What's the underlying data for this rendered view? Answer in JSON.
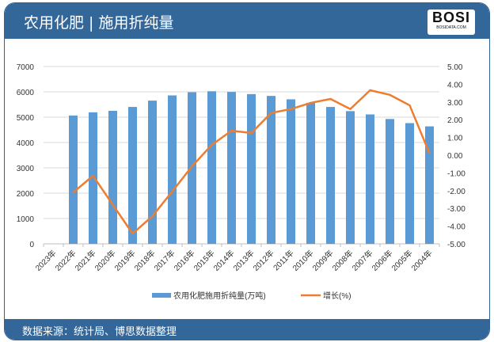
{
  "header": {
    "title": "农用化肥 | 施用折纯量",
    "logo_text": "BOSI",
    "logo_sub": "BOSIDATA.COM"
  },
  "footer": {
    "source": "数据来源：统计局、博思数据整理"
  },
  "colors": {
    "bar": "#5b9bd5",
    "line": "#ed7d31",
    "header": "#336699"
  },
  "chart_data": {
    "type": "bar+line",
    "categories": [
      "2023年",
      "2022年",
      "2021年",
      "2020年",
      "2019年",
      "2018年",
      "2017年",
      "2016年",
      "2015年",
      "2014年",
      "2013年",
      "2012年",
      "2011年",
      "2010年",
      "2009年",
      "2008年",
      "2007年",
      "2006年",
      "2005年",
      "2004年"
    ],
    "series": [
      {
        "name": "农用化肥施用折纯量(万吨)",
        "type": "bar",
        "axis": "left",
        "values": [
          null,
          5065,
          5191,
          5251,
          5404,
          5653,
          5859,
          5984,
          6023,
          5996,
          5912,
          5839,
          5704,
          5562,
          5404,
          5239,
          5108,
          4928,
          4766,
          4637
        ]
      },
      {
        "name": "增长(%)",
        "type": "line",
        "axis": "right",
        "values": [
          null,
          -2.1,
          -1.16,
          -2.8,
          -4.42,
          -3.44,
          -2.05,
          -0.63,
          0.58,
          1.38,
          1.25,
          2.38,
          2.6,
          2.95,
          3.17,
          2.6,
          3.66,
          3.4,
          2.81,
          0.1
        ]
      }
    ],
    "ylim_left": [
      0,
      7000
    ],
    "yticks_left": [
      "0",
      "1000",
      "2000",
      "3000",
      "4000",
      "5000",
      "6000",
      "7000"
    ],
    "ylim_right": [
      -5,
      5
    ],
    "yticks_right": [
      "-5.00",
      "-4.00",
      "-3.00",
      "-2.00",
      "-1.00",
      "0.00",
      "1.00",
      "2.00",
      "3.00",
      "4.00",
      "5.00"
    ],
    "grid": true,
    "legend": "bottom"
  }
}
